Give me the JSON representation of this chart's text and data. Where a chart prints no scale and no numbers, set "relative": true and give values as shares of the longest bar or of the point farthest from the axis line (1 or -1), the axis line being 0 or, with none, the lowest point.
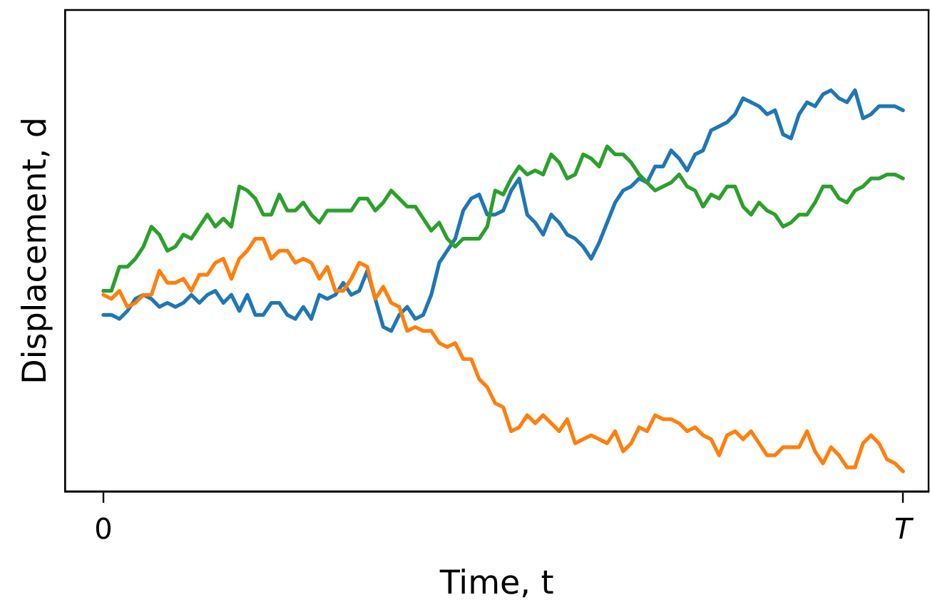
{
  "chart_data": {
    "type": "line",
    "xlabel": "Time, t",
    "ylabel": "Displacement, d",
    "relative": true,
    "categories": [
      "0",
      null,
      null,
      null,
      null,
      null,
      null,
      null,
      null,
      null,
      null,
      null,
      null,
      null,
      null,
      null,
      null,
      null,
      null,
      null,
      null,
      null,
      null,
      null,
      null,
      null,
      null,
      null,
      null,
      null,
      null,
      null,
      null,
      null,
      null,
      null,
      null,
      null,
      null,
      null,
      null,
      null,
      null,
      null,
      null,
      null,
      null,
      null,
      null,
      null,
      null,
      null,
      null,
      null,
      null,
      null,
      null,
      null,
      null,
      null,
      null,
      null,
      null,
      null,
      null,
      null,
      null,
      null,
      null,
      null,
      null,
      null,
      null,
      null,
      null,
      null,
      null,
      null,
      null,
      null,
      null,
      null,
      null,
      null,
      null,
      null,
      null,
      null,
      null,
      null,
      null,
      null,
      null,
      null,
      null,
      null,
      null,
      null,
      null,
      null,
      "T"
    ],
    "series": [
      {
        "color": "#1f77b4",
        "values": [
          0.44,
          0.44,
          0.43,
          0.45,
          0.48,
          0.49,
          0.48,
          0.46,
          0.47,
          0.46,
          0.47,
          0.49,
          0.47,
          0.49,
          0.5,
          0.47,
          0.49,
          0.45,
          0.49,
          0.44,
          0.44,
          0.47,
          0.47,
          0.44,
          0.43,
          0.46,
          0.43,
          0.49,
          0.48,
          0.49,
          0.52,
          0.49,
          0.5,
          0.55,
          0.48,
          0.41,
          0.4,
          0.44,
          0.46,
          0.43,
          0.44,
          0.49,
          0.57,
          0.6,
          0.63,
          0.7,
          0.73,
          0.74,
          0.69,
          0.69,
          0.7,
          0.75,
          0.78,
          0.69,
          0.67,
          0.64,
          0.69,
          0.67,
          0.64,
          0.63,
          0.61,
          0.58,
          0.62,
          0.67,
          0.72,
          0.75,
          0.76,
          0.78,
          0.77,
          0.81,
          0.81,
          0.85,
          0.83,
          0.8,
          0.84,
          0.85,
          0.9,
          0.91,
          0.92,
          0.94,
          0.98,
          0.97,
          0.96,
          0.94,
          0.95,
          0.89,
          0.88,
          0.94,
          0.97,
          0.96,
          0.99,
          1,
          0.98,
          0.97,
          1,
          0.93,
          0.94,
          0.96,
          0.96,
          0.96,
          0.95
        ]
      },
      {
        "color": "#ff7f0e",
        "values": [
          0.49,
          0.48,
          0.5,
          0.46,
          0.47,
          0.49,
          0.49,
          0.55,
          0.52,
          0.52,
          0.53,
          0.5,
          0.54,
          0.54,
          0.57,
          0.58,
          0.53,
          0.58,
          0.6,
          0.63,
          0.63,
          0.58,
          0.6,
          0.6,
          0.57,
          0.58,
          0.57,
          0.53,
          0.56,
          0.5,
          0.5,
          0.53,
          0.57,
          0.56,
          0.48,
          0.51,
          0.47,
          0.46,
          0.4,
          0.41,
          0.4,
          0.4,
          0.37,
          0.36,
          0.37,
          0.33,
          0.33,
          0.28,
          0.26,
          0.22,
          0.21,
          0.15,
          0.16,
          0.19,
          0.17,
          0.19,
          0.17,
          0.15,
          0.18,
          0.12,
          0.13,
          0.14,
          0.13,
          0.12,
          0.15,
          0.1,
          0.12,
          0.16,
          0.15,
          0.19,
          0.18,
          0.18,
          0.17,
          0.15,
          0.16,
          0.14,
          0.13,
          0.09,
          0.14,
          0.15,
          0.13,
          0.15,
          0.12,
          0.09,
          0.09,
          0.11,
          0.11,
          0.11,
          0.15,
          0.1,
          0.07,
          0.11,
          0.09,
          0.06,
          0.06,
          0.12,
          0.14,
          0.12,
          0.08,
          0.07,
          0.05
        ]
      },
      {
        "color": "#2ca02c",
        "values": [
          0.5,
          0.5,
          0.56,
          0.56,
          0.58,
          0.61,
          0.66,
          0.64,
          0.6,
          0.61,
          0.64,
          0.63,
          0.66,
          0.69,
          0.66,
          0.68,
          0.66,
          0.76,
          0.75,
          0.73,
          0.69,
          0.69,
          0.74,
          0.7,
          0.7,
          0.72,
          0.69,
          0.67,
          0.7,
          0.7,
          0.7,
          0.7,
          0.73,
          0.73,
          0.7,
          0.72,
          0.75,
          0.73,
          0.71,
          0.71,
          0.68,
          0.65,
          0.67,
          0.63,
          0.61,
          0.63,
          0.63,
          0.63,
          0.66,
          0.75,
          0.74,
          0.78,
          0.81,
          0.79,
          0.8,
          0.79,
          0.84,
          0.82,
          0.78,
          0.79,
          0.84,
          0.83,
          0.81,
          0.86,
          0.84,
          0.84,
          0.82,
          0.79,
          0.77,
          0.75,
          0.76,
          0.77,
          0.79,
          0.76,
          0.75,
          0.71,
          0.74,
          0.73,
          0.76,
          0.76,
          0.71,
          0.69,
          0.72,
          0.7,
          0.69,
          0.66,
          0.67,
          0.69,
          0.69,
          0.72,
          0.76,
          0.76,
          0.73,
          0.72,
          0.75,
          0.76,
          0.78,
          0.78,
          0.79,
          0.79,
          0.78
        ]
      }
    ]
  }
}
